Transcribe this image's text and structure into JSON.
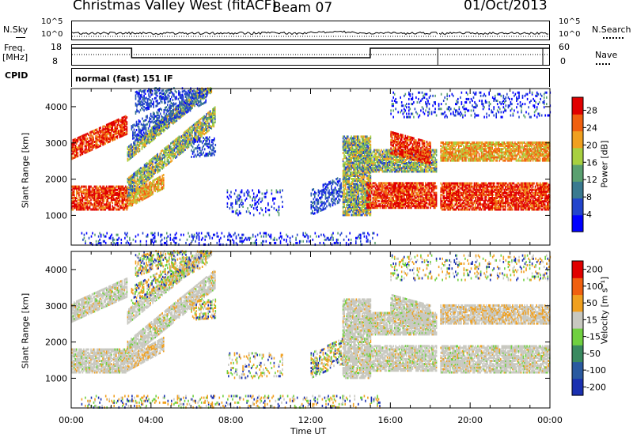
{
  "header": {
    "station": "Christmas Valley West (fitACF)",
    "beam": "Beam 07",
    "date": "01/Oct/2013"
  },
  "top_panels": {
    "nsky_label": "N.Sky",
    "nsky_ticks": [
      "10^5",
      "10^0"
    ],
    "nsky_right_ticks": [
      "10^5",
      "10^0"
    ],
    "nsearch_label": "N.Search",
    "freq_label": "Freq.",
    "freq_unit": "[MHz]",
    "freq_ticks": [
      "18",
      "8"
    ],
    "nave_ticks": [
      "60",
      "0"
    ],
    "nave_label": "Nave",
    "cpid_label": "CPID",
    "cpid_value": "normal (fast) 151 IF"
  },
  "chart_data": [
    {
      "type": "heatmap",
      "quantity": "Power",
      "ylabel": "Slant Range [km]",
      "ylim": [
        180,
        4500
      ],
      "yticks": [
        "1000",
        "2000",
        "3000",
        "4000"
      ],
      "colorbar_label": "Power [dB]",
      "colorbar_ticks": [
        "28",
        "24",
        "20",
        "16",
        "12",
        "8",
        "4"
      ],
      "colors": [
        "#0000ff",
        "#2244cc",
        "#3a7a90",
        "#5aa070",
        "#a8d040",
        "#f0a020",
        "#f06010",
        "#e00000"
      ]
    },
    {
      "type": "heatmap",
      "quantity": "Velocity",
      "ylabel": "Slant Range [km]",
      "ylim": [
        180,
        4500
      ],
      "yticks": [
        "1000",
        "2000",
        "3000",
        "4000"
      ],
      "colorbar_label": "Velocity [m s⁻¹]",
      "colorbar_ticks": [
        "200",
        "100",
        "50",
        "15",
        "-15",
        "-50",
        "-100",
        "-200"
      ],
      "colors": [
        "#1a30b0",
        "#2a5aa0",
        "#3a8a60",
        "#70d040",
        "#c8c8c0",
        "#f0a020",
        "#f06010",
        "#e00000"
      ]
    }
  ],
  "x_axis": {
    "label": "Time UT",
    "ticks": [
      "00:00",
      "04:00",
      "08:00",
      "12:00",
      "16:00",
      "20:00",
      "00:00"
    ]
  }
}
